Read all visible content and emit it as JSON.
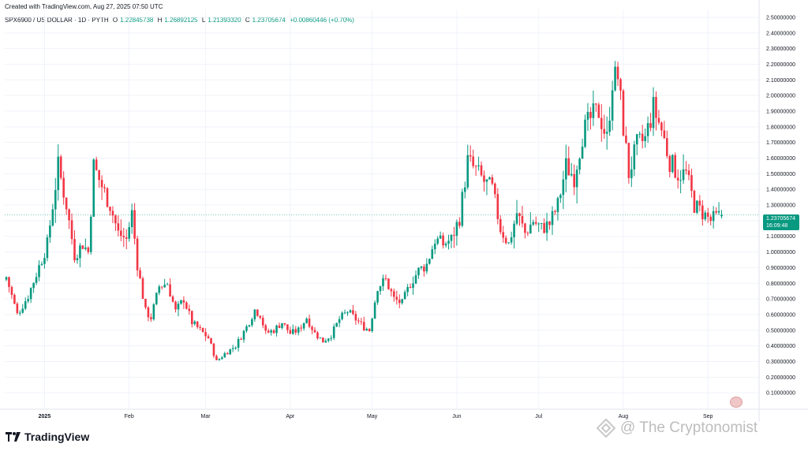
{
  "header": {
    "created_text": "Created with TradingView.com, Aug 27, 2025 07:50 UTC",
    "symbol_text": "SPX6900 / US DOLLAR · 1D · PYTH",
    "ohlc": [
      {
        "label": "O",
        "value": "1.22845738"
      },
      {
        "label": "H",
        "value": "1.26892125"
      },
      {
        "label": "L",
        "value": "1.21393320"
      },
      {
        "label": "C",
        "value": "1.23705674"
      }
    ],
    "change": "+0.00860446 (+0.70%)"
  },
  "price_tag": {
    "price": "1.23705674",
    "countdown": "16:09:48"
  },
  "logo_text": "TradingView",
  "watermark_text": "@ The Cryptonomist",
  "colors": {
    "up": "#089981",
    "down": "#f23645",
    "grid": "#f0f3fa",
    "axis_text": "#131722",
    "last_line": "#089981"
  },
  "chart_data": {
    "type": "candlestick",
    "title": "SPX6900 / US DOLLAR · 1D · PYTH",
    "y_axis": {
      "ylim": [
        0.0,
        2.55
      ],
      "ticks": [
        0.1,
        0.2,
        0.3,
        0.4,
        0.5,
        0.6,
        0.7,
        0.8,
        0.9,
        1.0,
        1.1,
        1.2,
        1.3,
        1.4,
        1.5,
        1.6,
        1.7,
        1.8,
        1.9,
        2.0,
        2.1,
        2.2,
        2.3,
        2.4,
        2.5
      ],
      "tick_labels": [
        "0.10000000",
        "0.20000000",
        "0.30000000",
        "0.40000000",
        "0.50000000",
        "0.60000000",
        "0.70000000",
        "0.80000000",
        "0.90000000",
        "1.00000000",
        "1.10000000",
        "1.20000000",
        "1.30000000",
        "1.40000000",
        "1.50000000",
        "1.60000000",
        "1.70000000",
        "1.80000000",
        "1.90000000",
        "2.00000000",
        "2.10000000",
        "2.20000000",
        "2.30000000",
        "2.40000000",
        "2.50000000"
      ]
    },
    "x_axis": {
      "labels": [
        {
          "text": "2025",
          "day": 14
        },
        {
          "text": "Feb",
          "day": 45
        },
        {
          "text": "Mar",
          "day": 73
        },
        {
          "text": "Apr",
          "day": 104
        },
        {
          "text": "May",
          "day": 134
        },
        {
          "text": "Jun",
          "day": 165
        },
        {
          "text": "Jul",
          "day": 195
        },
        {
          "text": "Aug",
          "day": 226
        },
        {
          "text": "Sep",
          "day": 257
        }
      ]
    },
    "last_price": 1.23705674,
    "close_anchors": [
      [
        0,
        0.84
      ],
      [
        4,
        0.6
      ],
      [
        8,
        0.72
      ],
      [
        11,
        0.86
      ],
      [
        15,
        1.05
      ],
      [
        19,
        1.55
      ],
      [
        22,
        1.3
      ],
      [
        25,
        0.98
      ],
      [
        28,
        1.05
      ],
      [
        30,
        1.0
      ],
      [
        32,
        1.55
      ],
      [
        35,
        1.42
      ],
      [
        38,
        1.3
      ],
      [
        41,
        1.12
      ],
      [
        44,
        1.08
      ],
      [
        46,
        1.25
      ],
      [
        48,
        0.92
      ],
      [
        51,
        0.62
      ],
      [
        53,
        0.58
      ],
      [
        56,
        0.78
      ],
      [
        59,
        0.8
      ],
      [
        62,
        0.62
      ],
      [
        65,
        0.7
      ],
      [
        68,
        0.55
      ],
      [
        71,
        0.5
      ],
      [
        74,
        0.45
      ],
      [
        77,
        0.3
      ],
      [
        80,
        0.35
      ],
      [
        84,
        0.4
      ],
      [
        88,
        0.52
      ],
      [
        91,
        0.63
      ],
      [
        93,
        0.6
      ],
      [
        95,
        0.48
      ],
      [
        98,
        0.5
      ],
      [
        101,
        0.55
      ],
      [
        104,
        0.48
      ],
      [
        107,
        0.5
      ],
      [
        110,
        0.58
      ],
      [
        113,
        0.48
      ],
      [
        116,
        0.43
      ],
      [
        119,
        0.47
      ],
      [
        122,
        0.57
      ],
      [
        125,
        0.62
      ],
      [
        128,
        0.57
      ],
      [
        131,
        0.52
      ],
      [
        133,
        0.5
      ],
      [
        136,
        0.78
      ],
      [
        139,
        0.82
      ],
      [
        142,
        0.7
      ],
      [
        145,
        0.67
      ],
      [
        148,
        0.8
      ],
      [
        151,
        0.88
      ],
      [
        154,
        0.92
      ],
      [
        157,
        1.08
      ],
      [
        160,
        1.05
      ],
      [
        163,
        1.08
      ],
      [
        166,
        1.22
      ],
      [
        169,
        1.58
      ],
      [
        172,
        1.52
      ],
      [
        175,
        1.45
      ],
      [
        178,
        1.4
      ],
      [
        181,
        1.15
      ],
      [
        184,
        1.05
      ],
      [
        187,
        1.25
      ],
      [
        190,
        1.12
      ],
      [
        193,
        1.2
      ],
      [
        196,
        1.15
      ],
      [
        199,
        1.18
      ],
      [
        202,
        1.3
      ],
      [
        205,
        1.55
      ],
      [
        208,
        1.48
      ],
      [
        211,
        1.75
      ],
      [
        214,
        1.85
      ],
      [
        217,
        1.9
      ],
      [
        220,
        1.72
      ],
      [
        222,
        2.1
      ],
      [
        224,
        2.12
      ],
      [
        226,
        1.8
      ],
      [
        228,
        1.5
      ],
      [
        231,
        1.68
      ],
      [
        234,
        1.72
      ],
      [
        237,
        1.92
      ],
      [
        240,
        1.78
      ],
      [
        243,
        1.58
      ],
      [
        246,
        1.5
      ],
      [
        249,
        1.5
      ],
      [
        252,
        1.3
      ],
      [
        255,
        1.25
      ],
      [
        258,
        1.2
      ],
      [
        260,
        1.22
      ],
      [
        262,
        1.237
      ]
    ]
  }
}
